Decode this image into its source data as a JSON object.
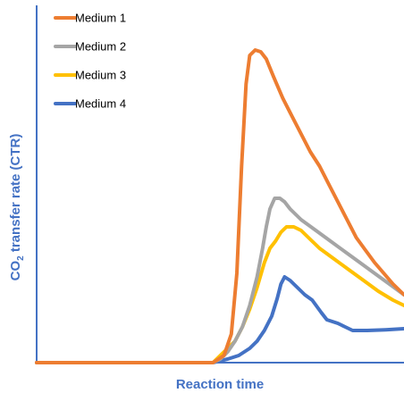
{
  "chart_data": {
    "type": "line",
    "title": "",
    "xlabel": "Reaction time",
    "ylabel": {
      "prefix": "CO",
      "subscript": "2",
      "suffix": " transfer rate (CTR)"
    },
    "x_ticks_shown": false,
    "y_ticks_shown": false,
    "grid": false,
    "legend": "top-left",
    "xlim": [
      0,
      100
    ],
    "ylim": [
      0,
      100
    ],
    "series": [
      {
        "name": "Medium 1",
        "color": "#ED7D31",
        "points": [
          [
            0,
            0
          ],
          [
            48,
            0
          ],
          [
            51,
            2
          ],
          [
            53,
            8
          ],
          [
            54.5,
            25
          ],
          [
            55.8,
            55
          ],
          [
            57,
            78
          ],
          [
            58,
            86
          ],
          [
            59.5,
            87.5
          ],
          [
            61,
            87
          ],
          [
            62.5,
            85
          ],
          [
            64.5,
            80
          ],
          [
            67,
            74
          ],
          [
            69.5,
            69
          ],
          [
            72,
            64
          ],
          [
            74.5,
            59
          ],
          [
            77,
            55
          ],
          [
            79.5,
            50
          ],
          [
            82,
            45
          ],
          [
            84.5,
            40
          ],
          [
            87,
            35
          ],
          [
            89.5,
            31.5
          ],
          [
            92,
            28
          ],
          [
            94.5,
            25
          ],
          [
            97,
            22
          ],
          [
            99,
            20
          ],
          [
            100,
            19
          ]
        ]
      },
      {
        "name": "Medium 2",
        "color": "#A5A5A5",
        "points": [
          [
            0,
            0
          ],
          [
            48,
            0
          ],
          [
            50,
            1
          ],
          [
            52,
            3
          ],
          [
            54,
            6
          ],
          [
            56,
            10
          ],
          [
            58,
            16
          ],
          [
            60,
            24
          ],
          [
            61.5,
            32
          ],
          [
            62.5,
            38
          ],
          [
            63.5,
            43
          ],
          [
            64.8,
            46
          ],
          [
            66.2,
            46
          ],
          [
            67.5,
            45
          ],
          [
            69,
            43
          ],
          [
            72,
            40
          ],
          [
            76,
            37
          ],
          [
            80,
            34
          ],
          [
            84,
            31
          ],
          [
            88,
            28
          ],
          [
            92,
            25
          ],
          [
            96,
            22
          ],
          [
            100,
            19
          ]
        ]
      },
      {
        "name": "Medium 3",
        "color": "#FFC000",
        "points": [
          [
            0,
            0
          ],
          [
            48,
            0
          ],
          [
            50,
            2
          ],
          [
            52,
            4
          ],
          [
            54,
            6
          ],
          [
            56,
            10
          ],
          [
            58,
            15
          ],
          [
            60,
            21
          ],
          [
            62,
            28
          ],
          [
            63.5,
            32
          ],
          [
            65,
            34
          ],
          [
            66.5,
            36.5
          ],
          [
            68,
            38
          ],
          [
            70,
            38
          ],
          [
            72,
            37
          ],
          [
            74,
            35
          ],
          [
            77,
            32
          ],
          [
            81,
            29
          ],
          [
            85,
            26
          ],
          [
            89,
            23
          ],
          [
            93,
            20
          ],
          [
            97,
            17.5
          ],
          [
            100,
            16
          ]
        ]
      },
      {
        "name": "Medium 4",
        "color": "#4472C4",
        "points": [
          [
            0,
            0
          ],
          [
            48,
            0
          ],
          [
            52,
            1
          ],
          [
            55,
            2
          ],
          [
            58,
            4
          ],
          [
            60,
            6
          ],
          [
            62,
            9
          ],
          [
            64,
            13
          ],
          [
            65.5,
            18
          ],
          [
            66.5,
            22
          ],
          [
            67.5,
            24
          ],
          [
            69,
            23
          ],
          [
            71,
            21
          ],
          [
            73,
            19
          ],
          [
            75,
            17.5
          ],
          [
            77.5,
            14
          ],
          [
            79,
            12
          ],
          [
            82,
            11
          ],
          [
            84,
            10
          ],
          [
            86,
            9
          ],
          [
            90,
            9
          ],
          [
            95,
            9.2
          ],
          [
            100,
            9.5
          ]
        ]
      }
    ]
  }
}
